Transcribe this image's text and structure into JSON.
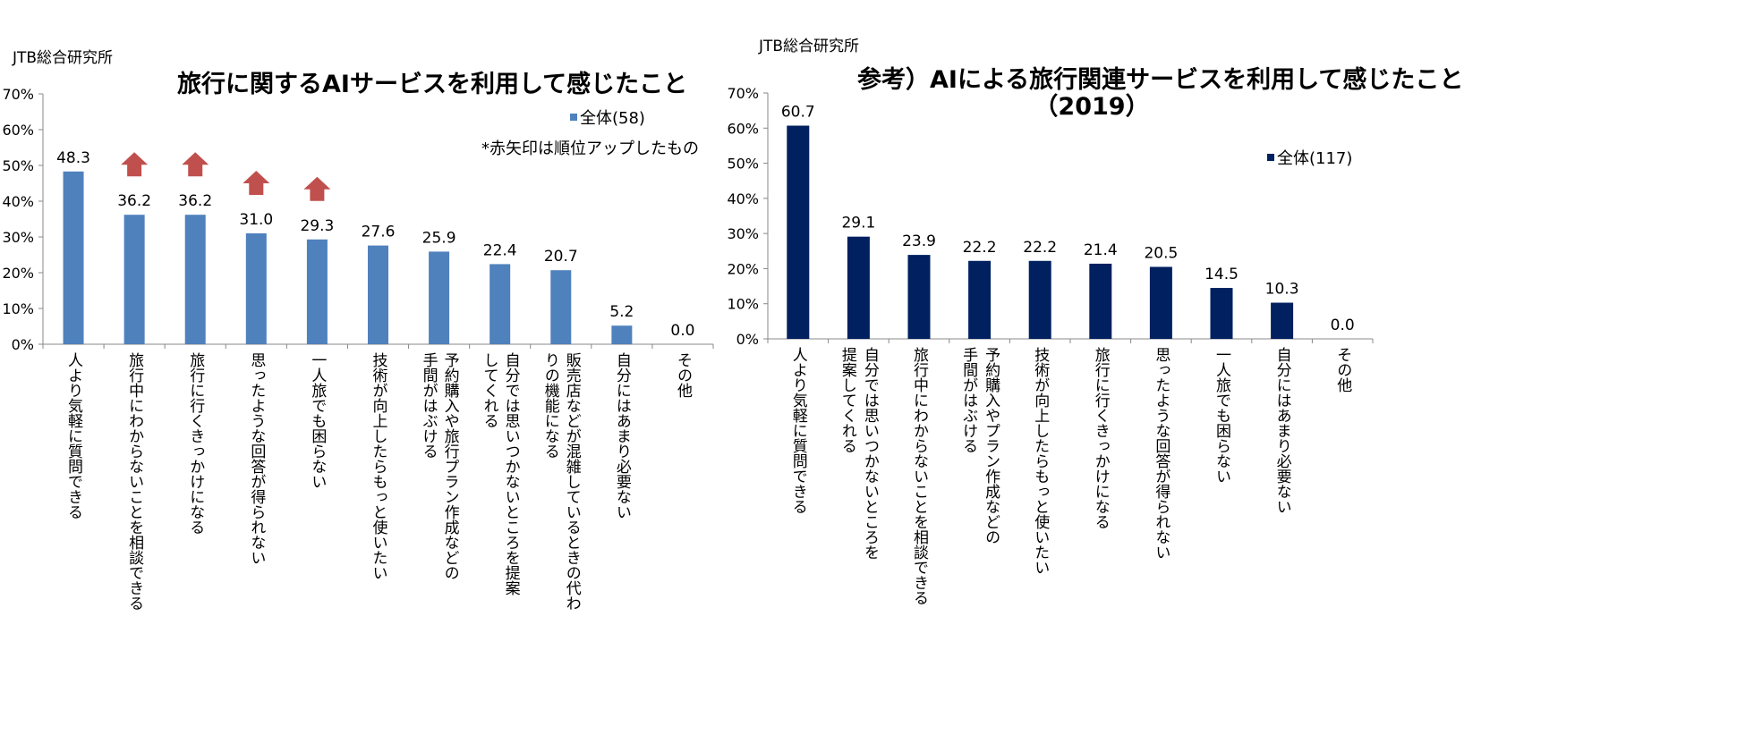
{
  "chart_data": [
    {
      "type": "bar",
      "source": "JTB総合研究所",
      "title": "旅行に関するAIサービスを利用して感じたこと",
      "legend": "全体(58)",
      "note": "*赤矢印は順位アップしたもの",
      "ylim": [
        0,
        70
      ],
      "yticks": [
        "0%",
        "10%",
        "20%",
        "30%",
        "40%",
        "50%",
        "60%",
        "70%"
      ],
      "color": "#4F81BD",
      "arrow_color": "#C0504D",
      "categories": [
        [
          "人より気軽に質問できる"
        ],
        [
          "旅行中にわからないことを相談できる"
        ],
        [
          "旅行に行くきっかけになる"
        ],
        [
          "思ったような回答が得られない"
        ],
        [
          "一人旅でも困らない"
        ],
        [
          "技術が向上したらもっと使いたい"
        ],
        [
          "予約購入や旅行プラン作成などの",
          "手間がはぶける"
        ],
        [
          "自分では思いつかないところを提案",
          "してくれる"
        ],
        [
          "販売店などが混雑しているときの代わ",
          "りの機能になる"
        ],
        [
          "自分にはあまり必要ない"
        ],
        [
          "その他"
        ]
      ],
      "values": [
        48.3,
        36.2,
        36.2,
        31.0,
        29.3,
        27.6,
        25.9,
        22.4,
        20.7,
        5.2,
        0.0
      ],
      "value_labels": [
        "48.3",
        "36.2",
        "36.2",
        "31.0",
        "29.3",
        "27.6",
        "25.9",
        "22.4",
        "20.7",
        "5.2",
        "0.0"
      ],
      "rank_up": [
        false,
        true,
        true,
        true,
        true,
        false,
        false,
        false,
        false,
        false,
        false
      ]
    },
    {
      "type": "bar",
      "source": "JTB総合研究所",
      "title": "参考）AIによる旅行関連サービスを利用して感じたこと",
      "title_line2": "（2019）",
      "legend": "全体(117)",
      "ylim": [
        0,
        70
      ],
      "yticks": [
        "0%",
        "10%",
        "20%",
        "30%",
        "40%",
        "50%",
        "60%",
        "70%"
      ],
      "color": "#002060",
      "categories": [
        [
          "人より気軽に質問できる"
        ],
        [
          "自分では思いつかないところを",
          "提案してくれる"
        ],
        [
          "旅行中にわからないことを相談できる"
        ],
        [
          "予約購入やプラン作成などの",
          "手間がはぶける"
        ],
        [
          "技術が向上したらもっと使いたい"
        ],
        [
          "旅行に行くきっかけになる"
        ],
        [
          "思ったような回答が得られない"
        ],
        [
          "一人旅でも困らない"
        ],
        [
          "自分にはあまり必要ない"
        ],
        [
          "その他"
        ]
      ],
      "values": [
        60.7,
        29.1,
        23.9,
        22.2,
        22.2,
        21.4,
        20.5,
        14.5,
        10.3,
        0.0
      ],
      "value_labels": [
        "60.7",
        "29.1",
        "23.9",
        "22.2",
        "22.2",
        "21.4",
        "20.5",
        "14.5",
        "10.3",
        "0.0"
      ]
    }
  ]
}
